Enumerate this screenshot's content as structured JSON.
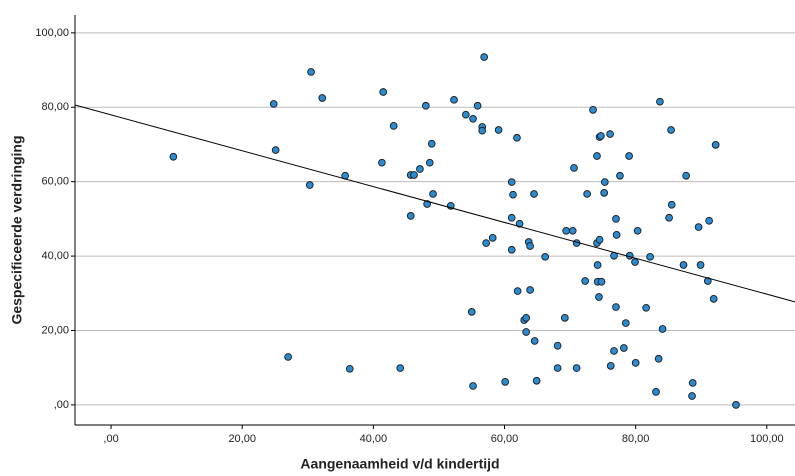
{
  "chart_data": {
    "type": "scatter",
    "x_label": "Aangenaamheid v/d kindertijd",
    "y_label": "Gespecificeerde verdringing",
    "xlim": [
      -5.5,
      104.3
    ],
    "ylim": [
      -5.4,
      104.8
    ],
    "xticks": [
      {
        "value": 0,
        "label": ",00"
      },
      {
        "value": 20,
        "label": "20,00"
      },
      {
        "value": 40,
        "label": "40,00"
      },
      {
        "value": 60,
        "label": "60,00"
      },
      {
        "value": 80,
        "label": "80,00"
      },
      {
        "value": 100,
        "label": "100,00"
      }
    ],
    "yticks": [
      {
        "value": 0,
        "label": ",00"
      },
      {
        "value": 20,
        "label": "20,00"
      },
      {
        "value": 40,
        "label": "40,00"
      },
      {
        "value": 60,
        "label": "60,00"
      },
      {
        "value": 80,
        "label": "80,00"
      },
      {
        "value": 100,
        "label": "100,00"
      }
    ],
    "grid": true,
    "series": [
      {
        "color": "#2a8bd0",
        "x": [
          9.5,
          24.8,
          25.1,
          30.5,
          32.2,
          30.3,
          27.0,
          35.7,
          36.4,
          41.5,
          41.3,
          43.1,
          44.1,
          45.7,
          46.2,
          45.7,
          47.1,
          48.0,
          48.2,
          48.9,
          48.6,
          49.1,
          51.8,
          52.3,
          54.1,
          55.2,
          55.9,
          56.6,
          56.6,
          56.9,
          59.1,
          55.0,
          55.2,
          57.2,
          58.2,
          60.1,
          61.9,
          61.1,
          61.3,
          61.1,
          62.3,
          61.1,
          62.0,
          63.0,
          63.3,
          63.3,
          63.7,
          63.9,
          63.9,
          64.5,
          64.6,
          64.9,
          66.2,
          68.1,
          68.1,
          69.2,
          69.4,
          70.4,
          70.6,
          71.0,
          71.0,
          72.3,
          72.6,
          73.5,
          74.1,
          74.5,
          74.7,
          76.1,
          75.2,
          75.3,
          74.1,
          74.5,
          74.2,
          74.2,
          74.8,
          74.4,
          76.7,
          77.0,
          77.1,
          77.6,
          77.0,
          76.7,
          76.2,
          78.2,
          78.5,
          79.0,
          79.1,
          79.9,
          80.3,
          80.0,
          82.2,
          81.6,
          83.7,
          83.1,
          83.5,
          84.1,
          85.4,
          85.5,
          85.1,
          87.7,
          87.3,
          88.7,
          88.6,
          89.6,
          89.9,
          91.2,
          91.0,
          91.9,
          92.2,
          95.3
        ],
        "values": [
          66.7,
          80.9,
          68.5,
          89.5,
          82.5,
          59.1,
          12.9,
          61.6,
          9.7,
          84.1,
          65.1,
          75.0,
          9.9,
          61.8,
          61.8,
          50.8,
          63.4,
          80.4,
          54.0,
          70.2,
          65.1,
          56.7,
          53.5,
          82.0,
          78.0,
          76.9,
          80.4,
          74.7,
          73.7,
          93.5,
          73.9,
          25.0,
          5.1,
          43.5,
          44.9,
          6.2,
          71.8,
          59.9,
          56.5,
          50.3,
          48.7,
          41.7,
          30.6,
          22.8,
          23.4,
          19.6,
          43.8,
          42.7,
          30.9,
          56.7,
          17.2,
          6.5,
          39.8,
          15.9,
          9.9,
          23.4,
          46.8,
          46.8,
          63.7,
          9.9,
          43.5,
          33.3,
          56.7,
          79.3,
          66.9,
          72.0,
          72.3,
          72.8,
          57.0,
          59.9,
          43.5,
          44.4,
          37.6,
          33.1,
          33.1,
          29.0,
          40.1,
          50.0,
          45.7,
          61.6,
          26.3,
          14.5,
          10.5,
          15.3,
          22.0,
          66.9,
          40.1,
          38.4,
          46.8,
          11.3,
          39.8,
          26.1,
          81.5,
          3.5,
          12.4,
          20.4,
          73.9,
          53.8,
          50.3,
          61.6,
          37.6,
          5.9,
          2.4,
          47.8,
          37.6,
          49.5,
          33.3,
          28.5,
          69.9,
          0
        ]
      }
    ],
    "fit_line": {
      "color": "#000000",
      "x": [
        -5.5,
        104.3
      ],
      "y": [
        80.6,
        27.7
      ]
    }
  }
}
